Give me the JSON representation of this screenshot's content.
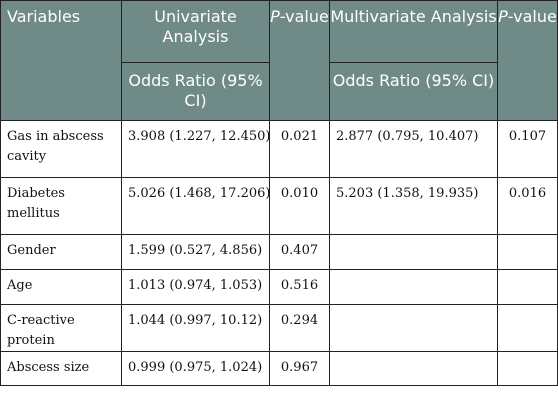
{
  "header": {
    "variables": "Variables",
    "univariate": "Univariate Analysis",
    "multivariate": "Multivariate Analysis",
    "p_italic": "P",
    "p_rest": "-value",
    "odds_ratio": "Odds Ratio (95% CI)"
  },
  "rows": [
    {
      "variable": "Gas in abscess cavity",
      "uni_or": "3.908 (1.227, 12.450)",
      "uni_p": "0.021",
      "multi_or": "2.877 (0.795, 10.407)",
      "multi_p": "0.107"
    },
    {
      "variable": "Diabetes mellitus",
      "uni_or": "5.026 (1.468, 17.206)",
      "uni_p": "0.010",
      "multi_or": "5.203 (1.358, 19.935)",
      "multi_p": "0.016"
    },
    {
      "variable": "Gender",
      "uni_or": "1.599 (0.527, 4.856)",
      "uni_p": "0.407",
      "multi_or": "",
      "multi_p": ""
    },
    {
      "variable": "Age",
      "uni_or": "1.013 (0.974, 1.053)",
      "uni_p": "0.516",
      "multi_or": "",
      "multi_p": ""
    },
    {
      "variable": "C-reactive protein",
      "uni_or": "1.044 (0.997, 10.12)",
      "uni_p": "0.294",
      "multi_or": "",
      "multi_p": ""
    },
    {
      "variable": "Abscess size",
      "uni_or": "0.999 (0.975, 1.024)",
      "uni_p": "0.967",
      "multi_or": "",
      "multi_p": ""
    }
  ]
}
